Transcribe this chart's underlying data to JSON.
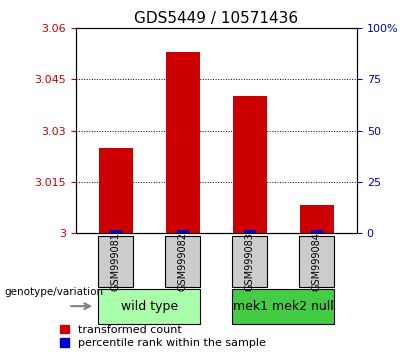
{
  "title": "GDS5449 / 10571436",
  "samples": [
    "GSM999081",
    "GSM999082",
    "GSM999083",
    "GSM999084"
  ],
  "red_values": [
    3.025,
    3.053,
    3.04,
    3.008
  ],
  "blue_values": [
    0.001,
    0.001,
    0.001,
    0.001
  ],
  "ymin": 3.0,
  "ymax": 3.06,
  "yticks_left": [
    3.0,
    3.015,
    3.03,
    3.045,
    3.06
  ],
  "yticks_right": [
    0,
    25,
    50,
    75,
    100
  ],
  "ytick_labels_left": [
    "3",
    "3.015",
    "3.03",
    "3.045",
    "3.06"
  ],
  "ytick_labels_right": [
    "0",
    "25",
    "50",
    "75",
    "100%"
  ],
  "red_color": "#cc0000",
  "blue_color": "#0000cc",
  "bar_width": 0.5,
  "group1_label": "wild type",
  "group2_label": "mek1 mek2 null",
  "group1_color": "#aaffaa",
  "group2_color": "#44cc44",
  "group1_indices": [
    0,
    1
  ],
  "group2_indices": [
    2,
    3
  ],
  "genotype_label": "genotype/variation",
  "legend_red": "transformed count",
  "legend_blue": "percentile rank within the sample",
  "title_fontsize": 11,
  "tick_fontsize": 8,
  "sample_fontsize": 7,
  "group_fontsize": 9,
  "legend_fontsize": 8,
  "grid_color": "#000000",
  "sample_area_color": "#cccccc",
  "plot_bg_color": "#ffffff",
  "outer_bg_color": "#ffffff"
}
